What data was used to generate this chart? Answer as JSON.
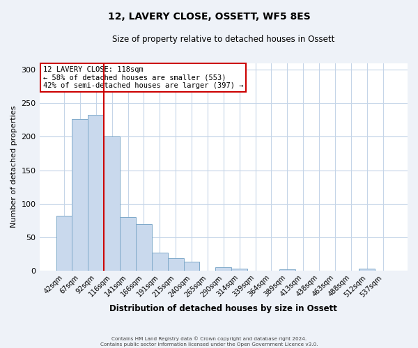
{
  "title": "12, LAVERY CLOSE, OSSETT, WF5 8ES",
  "subtitle": "Size of property relative to detached houses in Ossett",
  "bar_labels": [
    "42sqm",
    "67sqm",
    "92sqm",
    "116sqm",
    "141sqm",
    "166sqm",
    "191sqm",
    "215sqm",
    "240sqm",
    "265sqm",
    "290sqm",
    "314sqm",
    "339sqm",
    "364sqm",
    "389sqm",
    "413sqm",
    "438sqm",
    "463sqm",
    "488sqm",
    "512sqm",
    "537sqm"
  ],
  "bar_values": [
    82,
    226,
    233,
    200,
    80,
    70,
    27,
    19,
    13,
    0,
    5,
    3,
    0,
    0,
    2,
    0,
    0,
    0,
    0,
    3,
    0
  ],
  "bar_color": "#c9d9ed",
  "bar_edge_color": "#7da8c9",
  "vline_x": 2.5,
  "vline_color": "#cc0000",
  "annotation_title": "12 LAVERY CLOSE: 118sqm",
  "annotation_line1": "← 58% of detached houses are smaller (553)",
  "annotation_line2": "42% of semi-detached houses are larger (397) →",
  "annotation_box_color": "#ffffff",
  "annotation_box_edge": "#cc0000",
  "xlabel": "Distribution of detached houses by size in Ossett",
  "ylabel": "Number of detached properties",
  "ylim": [
    0,
    310
  ],
  "yticks": [
    0,
    50,
    100,
    150,
    200,
    250,
    300
  ],
  "footnote1": "Contains HM Land Registry data © Crown copyright and database right 2024.",
  "footnote2": "Contains public sector information licensed under the Open Government Licence v3.0.",
  "bg_color": "#eef2f8",
  "plot_bg_color": "#ffffff",
  "grid_color": "#c5d5e8"
}
